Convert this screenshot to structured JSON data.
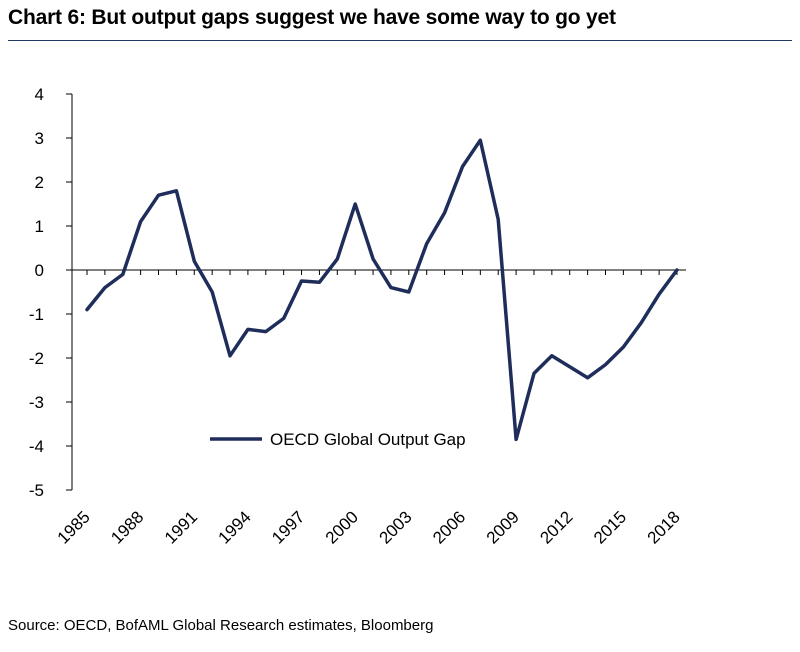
{
  "title": "Chart 6: But output gaps suggest we have some way to go yet",
  "source": "Source: OECD, BofAML Global Research estimates, Bloomberg",
  "colors": {
    "line": "#1f2d5a",
    "axis": "#000000",
    "title_rule": "#1f3864"
  },
  "chart_data": {
    "type": "line",
    "title": "",
    "xlabel": "",
    "ylabel": "",
    "ylim": [
      -5,
      4
    ],
    "yticks": [
      4,
      3,
      2,
      1,
      0,
      -1,
      -2,
      -3,
      -4,
      -5
    ],
    "xticks": [
      "1985",
      "1988",
      "1991",
      "1994",
      "1997",
      "2000",
      "2003",
      "2006",
      "2009",
      "2012",
      "2015",
      "2018"
    ],
    "grid": false,
    "legend": "center-left",
    "series": [
      {
        "name": "OECD Global Output Gap",
        "x": [
          1985,
          1986,
          1987,
          1988,
          1989,
          1990,
          1991,
          1992,
          1993,
          1994,
          1995,
          1996,
          1997,
          1998,
          1999,
          2000,
          2001,
          2002,
          2003,
          2004,
          2005,
          2006,
          2007,
          2008,
          2009,
          2010,
          2011,
          2012,
          2013,
          2014,
          2015,
          2016,
          2017,
          2018
        ],
        "values": [
          -0.9,
          -0.4,
          -0.1,
          1.1,
          1.7,
          1.8,
          0.2,
          -0.5,
          -1.95,
          -1.35,
          -1.4,
          -1.1,
          -0.25,
          -0.28,
          0.25,
          1.5,
          0.25,
          -0.4,
          -0.5,
          0.6,
          1.3,
          2.35,
          2.95,
          1.15,
          -3.85,
          -2.35,
          -1.95,
          -2.2,
          -2.45,
          -2.15,
          -1.75,
          -1.2,
          -0.55,
          0.0
        ]
      }
    ]
  }
}
